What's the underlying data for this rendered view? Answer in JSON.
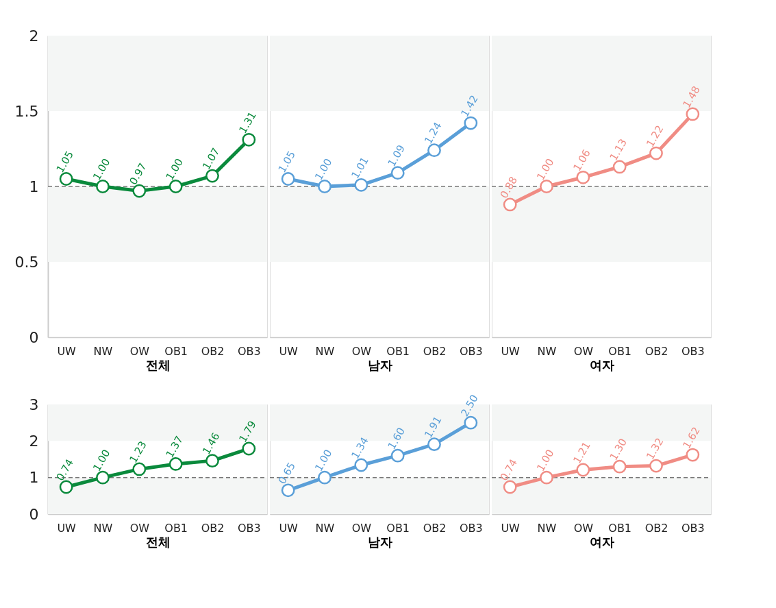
{
  "chart_data": [
    {
      "type": "line",
      "xlabel": "전체",
      "categories": [
        "UW",
        "NW",
        "OW",
        "OB1",
        "OB2",
        "OB3"
      ],
      "ylim": [
        0,
        2
      ],
      "yticks": [
        0,
        0.5,
        1,
        1.5,
        2
      ],
      "grid": false,
      "marker": "circle",
      "line_style": "solid",
      "ref_lines": [
        {
          "axis": "y",
          "value": 1,
          "color": "#777777",
          "line_style": "dashed"
        }
      ],
      "bands": [
        {
          "axis": "y",
          "from": 0.5,
          "to": 1,
          "color": "#f4f6f5"
        },
        {
          "axis": "y",
          "from": 1.5,
          "to": 2,
          "color": "#f4f6f5"
        }
      ],
      "series": [
        {
          "color": "#0a8a3c",
          "values": [
            1.05,
            1.0,
            0.97,
            1.0,
            1.07,
            1.31
          ],
          "value_labels": [
            "1.05",
            "1.00",
            "0.97",
            "1.00",
            "1.07",
            "1.31"
          ]
        }
      ]
    },
    {
      "type": "line",
      "xlabel": "남자",
      "categories": [
        "UW",
        "NW",
        "OW",
        "OB1",
        "OB2",
        "OB3"
      ],
      "ylim": [
        0,
        2
      ],
      "yticks": [
        0,
        0.5,
        1,
        1.5,
        2
      ],
      "tick_labels": "x",
      "grid": false,
      "marker": "circle",
      "line_style": "solid",
      "ref_lines": [
        {
          "axis": "y",
          "value": 1,
          "color": "#777777",
          "line_style": "dashed"
        }
      ],
      "bands": [
        {
          "axis": "y",
          "from": 0.5,
          "to": 1,
          "color": "#f4f6f5"
        },
        {
          "axis": "y",
          "from": 1.5,
          "to": 2,
          "color": "#f4f6f5"
        }
      ],
      "series": [
        {
          "color": "#5a9fd8",
          "values": [
            1.05,
            1.0,
            1.01,
            1.09,
            1.24,
            1.42
          ],
          "value_labels": [
            "1.05",
            "1.00",
            "1.01",
            "1.09",
            "1.24",
            "1.42"
          ]
        }
      ]
    },
    {
      "type": "line",
      "xlabel": "여자",
      "categories": [
        "UW",
        "NW",
        "OW",
        "OB1",
        "OB2",
        "OB3"
      ],
      "ylim": [
        0,
        2
      ],
      "yticks": [
        0,
        0.5,
        1,
        1.5,
        2
      ],
      "tick_labels": "x",
      "grid": false,
      "marker": "circle",
      "line_style": "solid",
      "ref_lines": [
        {
          "axis": "y",
          "value": 1,
          "color": "#777777",
          "line_style": "dashed"
        }
      ],
      "bands": [
        {
          "axis": "y",
          "from": 0.5,
          "to": 1,
          "color": "#f4f6f5"
        },
        {
          "axis": "y",
          "from": 1.5,
          "to": 2,
          "color": "#f4f6f5"
        }
      ],
      "series": [
        {
          "color": "#f08c84",
          "values": [
            0.88,
            1.0,
            1.06,
            1.13,
            1.22,
            1.48
          ],
          "value_labels": [
            "0.88",
            "1.00",
            "1.06",
            "1.13",
            "1.22",
            "1.48"
          ]
        }
      ]
    },
    {
      "type": "line",
      "xlabel": "전체",
      "categories": [
        "UW",
        "NW",
        "OW",
        "OB1",
        "OB2",
        "OB3"
      ],
      "ylim": [
        0,
        3
      ],
      "yticks": [
        0,
        1,
        2,
        3
      ],
      "grid": false,
      "marker": "circle",
      "line_style": "solid",
      "ref_lines": [
        {
          "axis": "y",
          "value": 1,
          "color": "#777777",
          "line_style": "dashed"
        }
      ],
      "bands": [
        {
          "axis": "y",
          "from": 0,
          "to": 1,
          "color": "#f4f6f5"
        },
        {
          "axis": "y",
          "from": 2,
          "to": 3,
          "color": "#f4f6f5"
        }
      ],
      "series": [
        {
          "color": "#0a8a3c",
          "values": [
            0.74,
            1.0,
            1.23,
            1.37,
            1.46,
            1.79
          ],
          "value_labels": [
            "0.74",
            "1.00",
            "1.23",
            "1.37",
            "1.46",
            "1.79"
          ]
        }
      ]
    },
    {
      "type": "line",
      "xlabel": "남자",
      "categories": [
        "UW",
        "NW",
        "OW",
        "OB1",
        "OB2",
        "OB3"
      ],
      "ylim": [
        0,
        3
      ],
      "yticks": [
        0,
        1,
        2,
        3
      ],
      "tick_labels": "x",
      "grid": false,
      "marker": "circle",
      "line_style": "solid",
      "ref_lines": [
        {
          "axis": "y",
          "value": 1,
          "color": "#777777",
          "line_style": "dashed"
        }
      ],
      "bands": [
        {
          "axis": "y",
          "from": 0,
          "to": 1,
          "color": "#f4f6f5"
        },
        {
          "axis": "y",
          "from": 2,
          "to": 3,
          "color": "#f4f6f5"
        }
      ],
      "series": [
        {
          "color": "#5a9fd8",
          "values": [
            0.65,
            1.0,
            1.34,
            1.6,
            1.91,
            2.5
          ],
          "value_labels": [
            "0.65",
            "1.00",
            "1.34",
            "1.60",
            "1.91",
            "2.50"
          ]
        }
      ]
    },
    {
      "type": "line",
      "xlabel": "여자",
      "categories": [
        "UW",
        "NW",
        "OW",
        "OB1",
        "OB2",
        "OB3"
      ],
      "ylim": [
        0,
        3
      ],
      "yticks": [
        0,
        1,
        2,
        3
      ],
      "tick_labels": "x",
      "grid": false,
      "marker": "circle",
      "line_style": "solid",
      "ref_lines": [
        {
          "axis": "y",
          "value": 1,
          "color": "#777777",
          "line_style": "dashed"
        }
      ],
      "bands": [
        {
          "axis": "y",
          "from": 0,
          "to": 1,
          "color": "#f4f6f5"
        },
        {
          "axis": "y",
          "from": 2,
          "to": 3,
          "color": "#f4f6f5"
        }
      ],
      "series": [
        {
          "color": "#f08c84",
          "values": [
            0.74,
            1.0,
            1.21,
            1.3,
            1.32,
            1.62
          ],
          "value_labels": [
            "0.74",
            "1.00",
            "1.21",
            "1.30",
            "1.32",
            "1.62"
          ]
        }
      ]
    }
  ]
}
